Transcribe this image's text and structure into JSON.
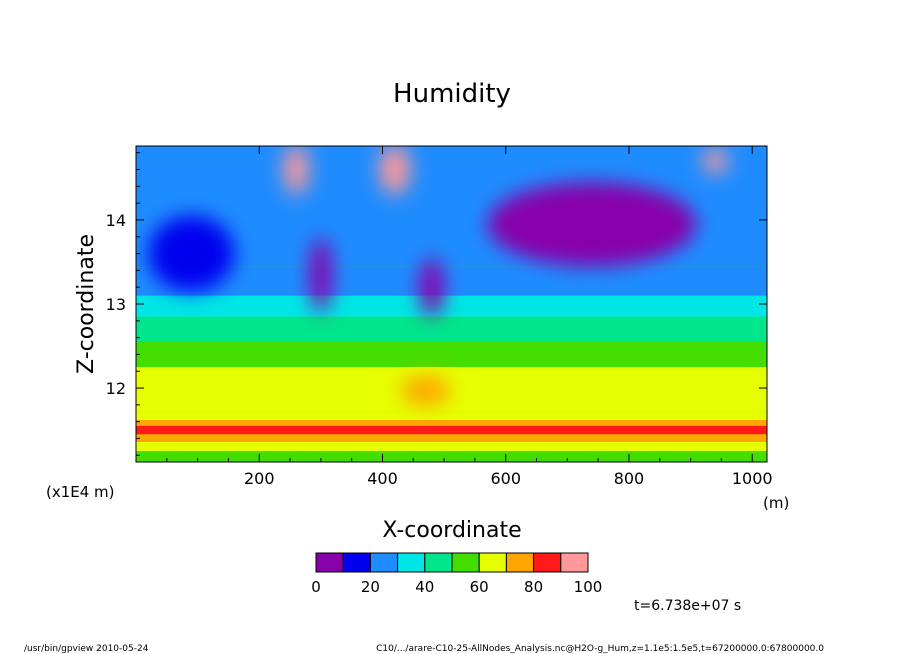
{
  "chart_data": {
    "type": "heatmap",
    "title": "Humidity",
    "xlabel": "X-coordinate",
    "ylabel": "Z-coordinate",
    "x_unit": "(m)",
    "y_unit": "(x1E4 m)",
    "xlim": [
      0,
      1024
    ],
    "ylim": [
      11.12,
      14.88
    ],
    "x_ticks": [
      200,
      400,
      600,
      800,
      1000
    ],
    "x_tick_labels": [
      "200",
      "400",
      "600",
      "800",
      "1000"
    ],
    "y_ticks": [
      12,
      13,
      14
    ],
    "y_tick_labels": [
      "12",
      "13",
      "14"
    ],
    "colorbar": {
      "levels": [
        0,
        10,
        20,
        30,
        40,
        50,
        60,
        70,
        80,
        90,
        100
      ],
      "tick_labels": [
        "0",
        "20",
        "40",
        "60",
        "80",
        "100"
      ],
      "colors": [
        "#8800aa",
        "#0000ee",
        "#1e8cff",
        "#00e6e6",
        "#00e68c",
        "#44dd00",
        "#e6ff00",
        "#ffa500",
        "#ff1a1a",
        "#ff9999"
      ]
    },
    "bands": [
      {
        "z_min": 11.12,
        "z_max": 11.25,
        "value": 55
      },
      {
        "z_min": 11.25,
        "z_max": 11.36,
        "value": 65
      },
      {
        "z_min": 11.36,
        "z_max": 11.45,
        "value": 75
      },
      {
        "z_min": 11.45,
        "z_max": 11.55,
        "value": 85
      },
      {
        "z_min": 11.55,
        "z_max": 11.62,
        "value": 75
      },
      {
        "z_min": 11.62,
        "z_max": 11.72,
        "value": 65
      }
    ],
    "regions": [
      {
        "x": 740,
        "z": 13.95,
        "value": 5,
        "rx": 170,
        "rz": 0.5
      },
      {
        "x": 480,
        "z": 13.2,
        "value": 5,
        "rx": 20,
        "rz": 0.35
      },
      {
        "x": 300,
        "z": 13.35,
        "value": 5,
        "rx": 18,
        "rz": 0.45
      },
      {
        "x": 90,
        "z": 13.6,
        "value": 15,
        "rx": 70,
        "rz": 0.45
      },
      {
        "x": 420,
        "z": 14.6,
        "value": 95,
        "rx": 25,
        "rz": 0.3
      },
      {
        "x": 260,
        "z": 14.6,
        "value": 95,
        "rx": 20,
        "rz": 0.3
      },
      {
        "x": 940,
        "z": 14.7,
        "value": 95,
        "rx": 20,
        "rz": 0.15
      },
      {
        "x": 470,
        "z": 11.97,
        "value": 75,
        "rx": 40,
        "rz": 0.18
      }
    ]
  },
  "annotations": {
    "time": "t=6.738e+07 s",
    "footer_left": "/usr/bin/gpview  2010-05-24",
    "footer_right": "C10/.../arare-C10-25-AllNodes_Analysis.nc@H2O-g_Hum,z=1.1e5:1.5e5,t=67200000.0:67800000.0"
  }
}
